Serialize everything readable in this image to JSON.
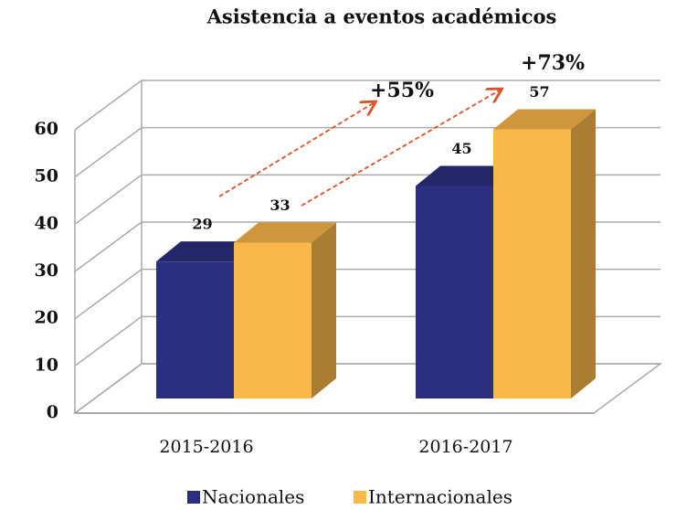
{
  "chart_data": {
    "type": "bar3d",
    "title": "Asistencia a eventos académicos",
    "categories": [
      "2015-2016",
      "2016-2017"
    ],
    "series": [
      {
        "name": "Nacionales",
        "color": "#2b2f7f",
        "values": [
          29,
          45
        ]
      },
      {
        "name": "Internacionales",
        "color": "#fbb84a",
        "values": [
          33,
          57
        ]
      }
    ],
    "ylim": [
      0,
      60
    ],
    "yticks": [
      0,
      10,
      20,
      30,
      40,
      50,
      60
    ],
    "grid": true,
    "annotations": [
      "+55%",
      "+73%"
    ],
    "legend": "bottom"
  }
}
